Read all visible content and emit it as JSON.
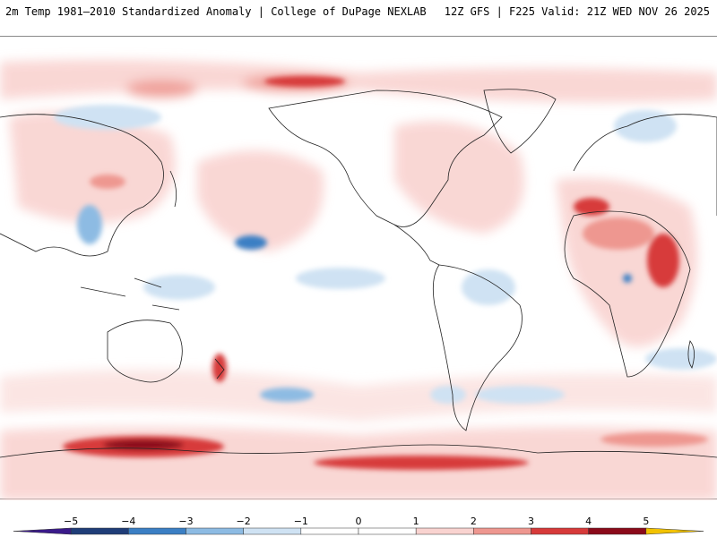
{
  "header": {
    "left": "2m Temp 1981–2010 Standardized Anomaly | College of DuPage NEXLAB",
    "right": "12Z GFS | F225 Valid: 21Z WED NOV 26 2025"
  },
  "colorbar": {
    "labels": [
      "−5",
      "−4",
      "−3",
      "−2",
      "−1",
      "0",
      "1",
      "2",
      "3",
      "4",
      "5"
    ],
    "colors": [
      "#3a1a8a",
      "#1f3d78",
      "#3b7fc4",
      "#8dbbe3",
      "#cfe2f3",
      "#ffffff",
      "#ffffff",
      "#f9d3d0",
      "#ee9790",
      "#d73a3a",
      "#8b0a1a",
      "#f2c200"
    ]
  },
  "map": {
    "background": "#ffffff",
    "coastline_color": "#222222"
  }
}
